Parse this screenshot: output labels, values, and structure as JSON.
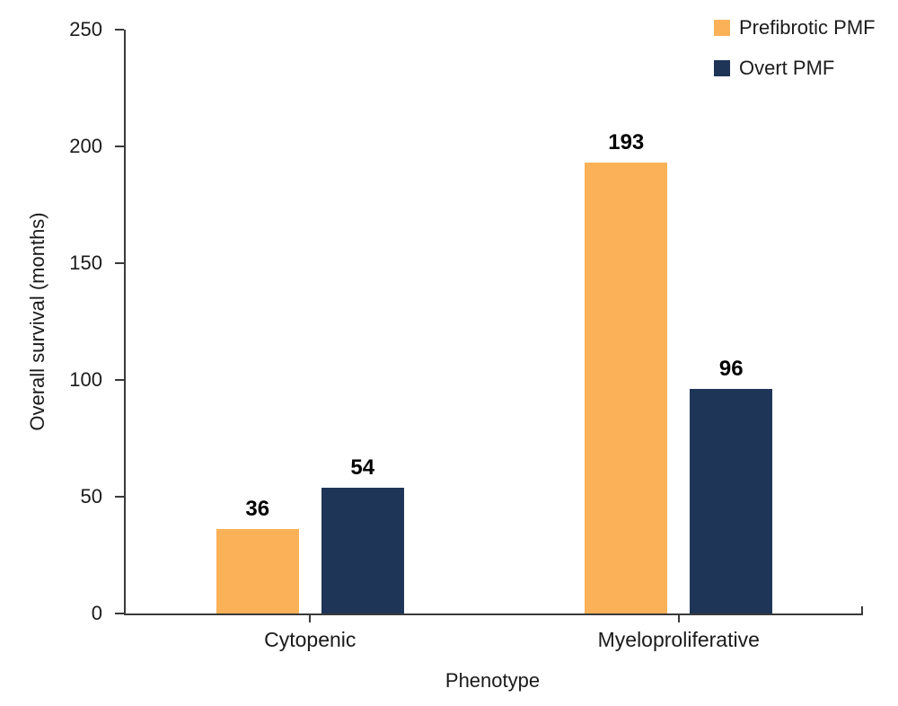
{
  "chart_data": {
    "type": "bar",
    "title": "",
    "xlabel": "Phenotype",
    "ylabel": "Overall survival (months)",
    "categories": [
      "Cytopenic",
      "Myeloproliferative"
    ],
    "series": [
      {
        "name": "Prefibrotic PMF",
        "color": "#FBB158",
        "values": [
          36,
          193
        ]
      },
      {
        "name": "Overt PMF",
        "color": "#1F3557",
        "values": [
          54,
          96
        ]
      }
    ],
    "ylim": [
      0,
      250
    ],
    "yticks": [
      0,
      50,
      100,
      150,
      200,
      250
    ],
    "grid": false,
    "legend_position": "top-right",
    "bar_value_labels": [
      [
        "36",
        "193"
      ],
      [
        "54",
        "96"
      ]
    ]
  },
  "colors": {
    "background": "#ffffff",
    "axis": "#3a3a3a",
    "tick_text": "#1a1a1a",
    "value_label_text": "#000000"
  }
}
